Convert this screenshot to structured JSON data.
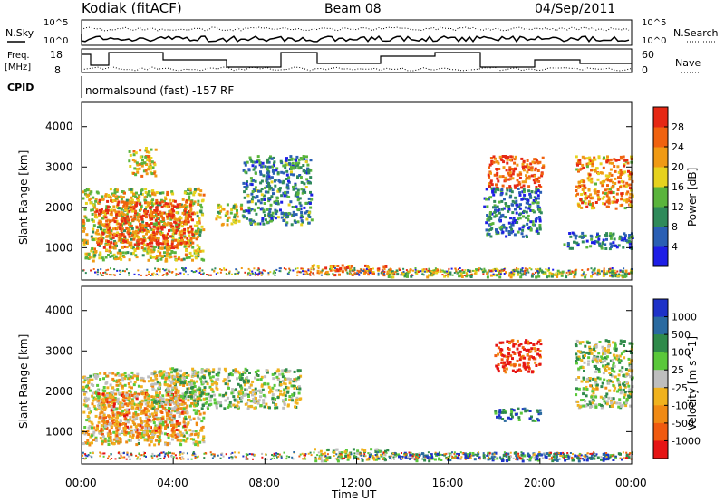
{
  "header": {
    "site": "Kodiak (fitACF)",
    "beam": "Beam 08",
    "date": "04/Sep/2011"
  },
  "top_panel": {
    "nsky_label": "N.Sky",
    "nsearch_label": "N.Search",
    "noise_ticks_left": [
      "10^5",
      "10^0"
    ],
    "noise_ticks_right": [
      "10^5",
      "10^0"
    ],
    "freq_label_line1": "Freq.",
    "freq_label_line2": "[MHz]",
    "freq_ticks": [
      "18",
      "8"
    ],
    "nave_label": "Nave",
    "nave_ticks": [
      "60",
      "0"
    ],
    "cpid_label": "CPID",
    "cpid_text": "normalsound (fast) -157 RF"
  },
  "chart_data": [
    {
      "type": "heatmap",
      "name": "power",
      "ylabel": "Slant Range [km]",
      "yticks": [
        1000,
        2000,
        3000,
        4000
      ],
      "ylim": [
        200,
        4600
      ],
      "xlim_hours": [
        0,
        24
      ],
      "colorbar_label": "Power [dB]",
      "colorbar_ticks": [
        "4",
        "8",
        "12",
        "16",
        "20",
        "24",
        "28"
      ],
      "colorbar_colors": [
        "#1e1ee6",
        "#2a5fb4",
        "#2f8a5a",
        "#5ab43c",
        "#e6d21e",
        "#f09a14",
        "#f0620f",
        "#e62814"
      ],
      "regions": [
        {
          "t0": 0.0,
          "t1": 5.3,
          "r0": 700,
          "r1": 2500,
          "level": 0.55
        },
        {
          "t0": 0.6,
          "t1": 4.8,
          "r0": 1000,
          "r1": 2200,
          "level": 0.85
        },
        {
          "t0": 2.0,
          "t1": 3.2,
          "r0": 2800,
          "r1": 3500,
          "level": 0.6
        },
        {
          "t0": 5.8,
          "t1": 7.0,
          "r0": 1600,
          "r1": 2100,
          "level": 0.55
        },
        {
          "t0": 7.0,
          "t1": 10.0,
          "r0": 1600,
          "r1": 3300,
          "level": 0.3
        },
        {
          "t0": 10.0,
          "t1": 13.3,
          "r0": 350,
          "r1": 600,
          "level": 0.8
        },
        {
          "t0": 13.3,
          "t1": 24.0,
          "r0": 300,
          "r1": 500,
          "level": 0.5
        },
        {
          "t0": 17.7,
          "t1": 20.1,
          "r0": 2500,
          "r1": 3300,
          "level": 0.85
        },
        {
          "t0": 17.5,
          "t1": 20.0,
          "r0": 1300,
          "r1": 2500,
          "level": 0.25
        },
        {
          "t0": 21.5,
          "t1": 24.0,
          "r0": 2000,
          "r1": 3300,
          "level": 0.7
        },
        {
          "t0": 21.0,
          "t1": 24.0,
          "r0": 1000,
          "r1": 1400,
          "level": 0.25
        }
      ]
    },
    {
      "type": "heatmap",
      "name": "velocity",
      "xlabel": "Time UT",
      "ylabel": "Slant Range [km]",
      "xticks": [
        "00:00",
        "04:00",
        "08:00",
        "12:00",
        "16:00",
        "20:00",
        "00:00"
      ],
      "yticks": [
        1000,
        2000,
        3000,
        4000
      ],
      "ylim": [
        200,
        4600
      ],
      "xlim_hours": [
        0,
        24
      ],
      "colorbar_label": "Velocity [m s^-1]",
      "colorbar_ticks": [
        "1000",
        "500",
        "100",
        "25",
        "-25",
        "-100",
        "-500",
        "-1000"
      ],
      "colorbar_colors": [
        "#1e32c8",
        "#2a6aa0",
        "#2f8a4a",
        "#5ac83a",
        "#bebebe",
        "#f0b21e",
        "#f08a14",
        "#f05a0f",
        "#e61414"
      ],
      "regions": [
        {
          "t0": 0.0,
          "t1": 5.3,
          "r0": 700,
          "r1": 2500,
          "level": 0.55
        },
        {
          "t0": 0.6,
          "t1": 4.5,
          "r0": 900,
          "r1": 2000,
          "level": 0.7
        },
        {
          "t0": 3.0,
          "t1": 9.5,
          "r0": 1600,
          "r1": 2600,
          "level": 0.45
        },
        {
          "t0": 10.0,
          "t1": 13.3,
          "r0": 300,
          "r1": 600,
          "level": 0.45
        },
        {
          "t0": 13.3,
          "t1": 24.0,
          "r0": 300,
          "r1": 500,
          "level": 0.2
        },
        {
          "t0": 18.0,
          "t1": 20.0,
          "r0": 2500,
          "r1": 3300,
          "level": 0.9
        },
        {
          "t0": 21.5,
          "t1": 24.0,
          "r0": 1600,
          "r1": 3300,
          "level": 0.45
        },
        {
          "t0": 18.0,
          "t1": 20.0,
          "r0": 1300,
          "r1": 1600,
          "level": 0.2
        }
      ]
    }
  ]
}
